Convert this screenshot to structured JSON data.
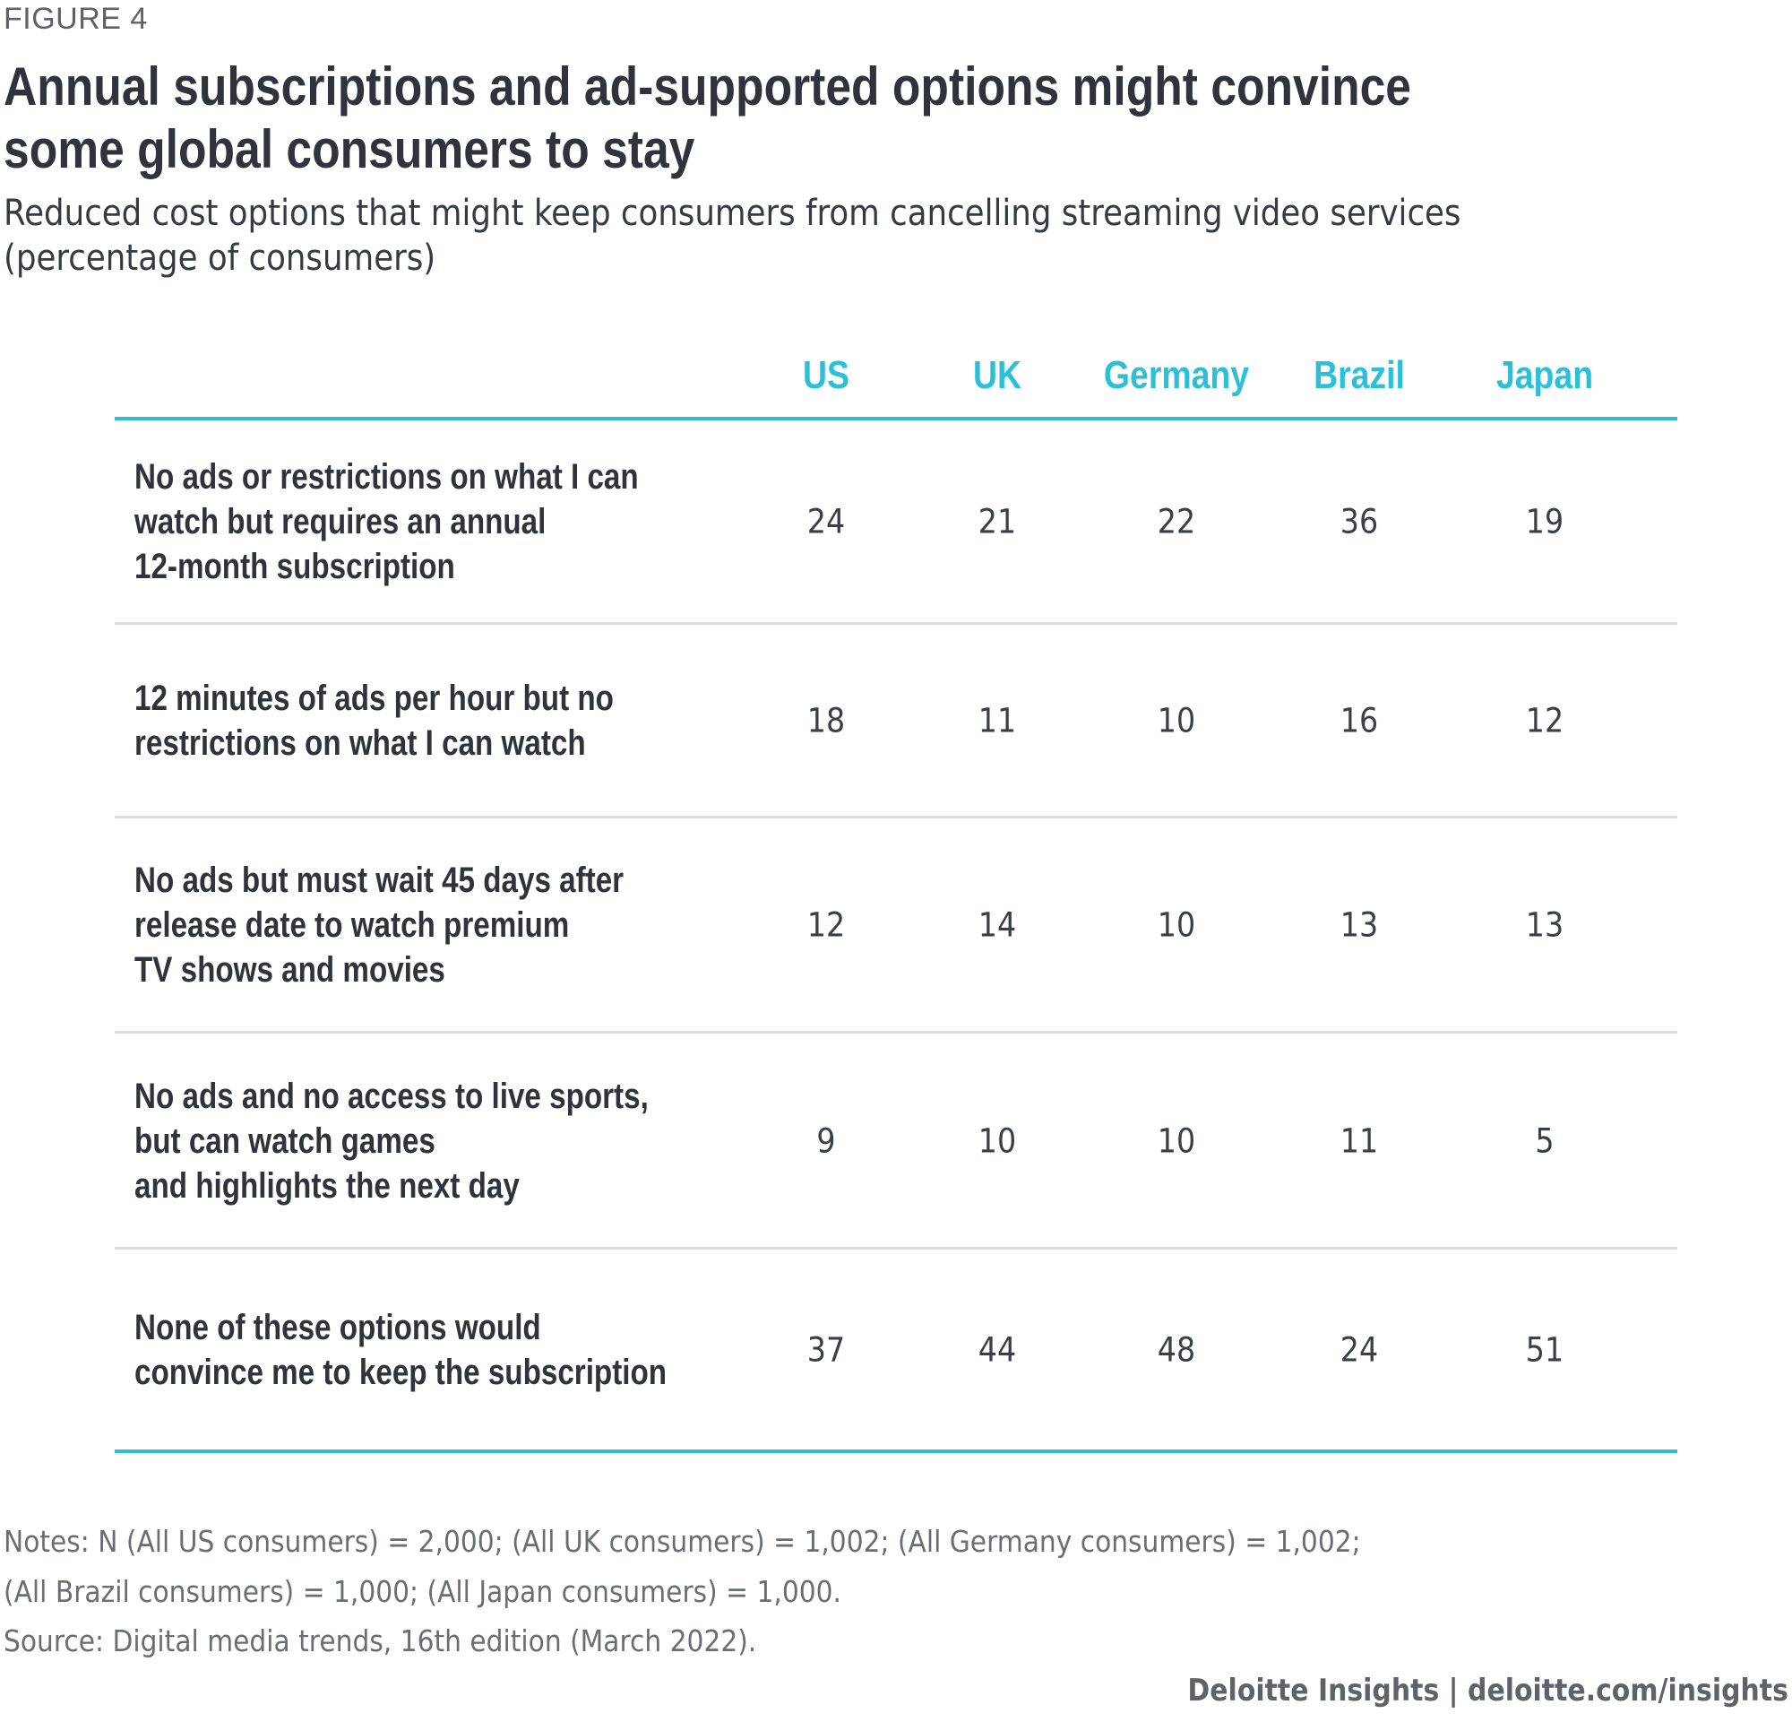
{
  "figure_label": "FIGURE 4",
  "title": "Annual subscriptions and ad-supported options might convince some global consumers to stay",
  "subtitle": "Reduced cost options that might keep consumers from cancelling streaming video services (percentage of consumers)",
  "colors": {
    "accent": "#35bcd5",
    "header_text": "#2dbfd8",
    "row_label_text": "#30333b",
    "separator": "#dcdcdc"
  },
  "chart_data": {
    "type": "table",
    "title": "Annual subscriptions and ad-supported options might convince some global consumers to stay",
    "subtitle": "Reduced cost options that might keep consumers from cancelling streaming video services (percentage of consumers)",
    "columns": [
      "US",
      "UK",
      "Germany",
      "Brazil",
      "Japan"
    ],
    "rows": [
      {
        "label": "No ads or restrictions on what I can watch but requires an annual 12-month subscription",
        "label_lines": [
          "No ads or restrictions on what I can",
          "watch but requires an annual",
          "12-month subscription"
        ],
        "values": [
          24,
          21,
          22,
          36,
          19
        ]
      },
      {
        "label": "12 minutes of ads per hour but no restrictions on what I can watch",
        "label_lines": [
          "12 minutes of ads per hour but no",
          "restrictions on what I can watch"
        ],
        "values": [
          18,
          11,
          10,
          16,
          12
        ]
      },
      {
        "label": "No ads but must wait 45 days after release date to watch premium TV shows and movies",
        "label_lines": [
          "No ads but must wait 45 days after",
          "release date to watch premium",
          "TV shows and movies"
        ],
        "values": [
          12,
          14,
          10,
          13,
          13
        ]
      },
      {
        "label": "No ads and no access to live sports, but can watch games and highlights the next day",
        "label_lines": [
          "No ads and no access to live sports,",
          "but can watch games",
          "and highlights the next day"
        ],
        "values": [
          9,
          10,
          10,
          11,
          5
        ]
      },
      {
        "label": "None of these options would convince me to keep the subscription",
        "label_lines": [
          "None of these options would",
          "convince me to keep the subscription"
        ],
        "values": [
          37,
          44,
          48,
          24,
          51
        ]
      }
    ],
    "units": "percentage of consumers"
  },
  "notes": {
    "line1": "Notes: N (All US consumers) = 2,000; (All UK consumers) = 1,002; (All Germany consumers) = 1,002;",
    "line2": "(All Brazil consumers) = 1,000; (All Japan consumers) = 1,000.",
    "source": "Source: Digital media trends, 16th edition (March 2022)."
  },
  "credit": "Deloitte Insights | deloitte.com/insights"
}
